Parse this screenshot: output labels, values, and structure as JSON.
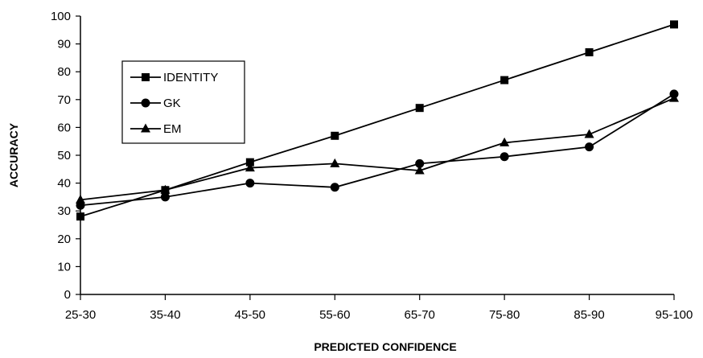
{
  "chart_data": {
    "type": "line",
    "title": "",
    "xlabel": "PREDICTED CONFIDENCE",
    "ylabel": "ACCURACY",
    "categories": [
      "25-30",
      "35-40",
      "45-50",
      "55-60",
      "65-70",
      "75-80",
      "85-90",
      "95-100"
    ],
    "ylim": [
      0,
      100
    ],
    "yticks": [
      0,
      10,
      20,
      30,
      40,
      50,
      60,
      70,
      80,
      90,
      100
    ],
    "grid": false,
    "legend_position": "top-left",
    "series": [
      {
        "name": "IDENTITY",
        "marker": "square",
        "values": [
          28,
          37.5,
          47.5,
          57,
          67,
          77,
          87,
          97
        ]
      },
      {
        "name": "GK",
        "marker": "circle",
        "values": [
          32,
          35,
          40,
          38.5,
          47,
          49.5,
          53,
          72
        ]
      },
      {
        "name": "EM",
        "marker": "triangle",
        "values": [
          34,
          37.5,
          45.5,
          47,
          44.5,
          54.5,
          57.5,
          70.5
        ]
      }
    ]
  }
}
